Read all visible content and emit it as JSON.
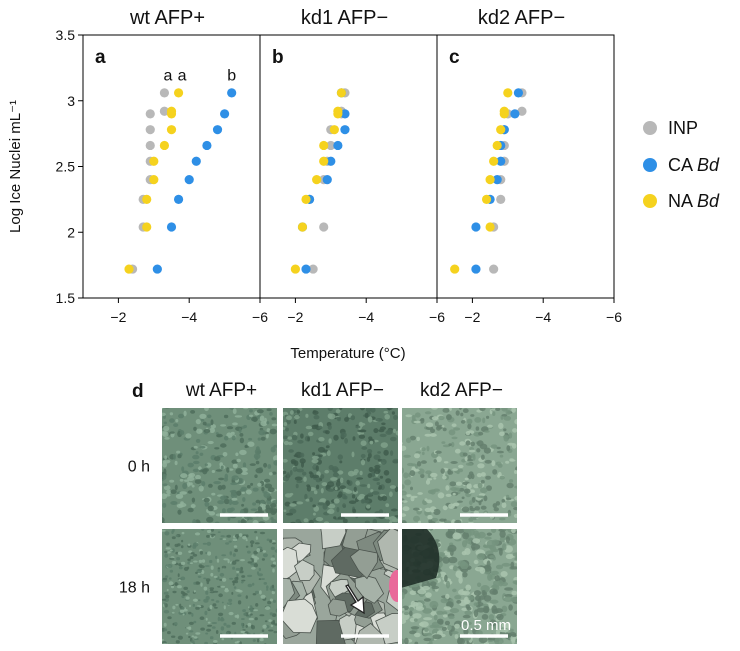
{
  "chart_data": [
    {
      "type": "scatter",
      "panel_letter": "a",
      "title": "wt AFP+",
      "xlabel": "Temperature (°C)",
      "ylabel": "Log Ice Nuclei mL⁻¹",
      "xlim": [
        -1,
        -6
      ],
      "ylim": [
        1.5,
        3.5
      ],
      "xticks": [
        -2,
        -4,
        -6
      ],
      "yticks": [
        1.5,
        2,
        2.5,
        3,
        3.5
      ],
      "significance_labels": [
        {
          "text": "a",
          "x": -3.4,
          "y": 3.2
        },
        {
          "text": "a",
          "x": -3.8,
          "y": 3.2
        },
        {
          "text": "b",
          "x": -5.2,
          "y": 3.2
        }
      ],
      "series": [
        {
          "name": "INP",
          "color": "#b8b8b8",
          "x": [
            -2.4,
            -2.7,
            -2.7,
            -2.9,
            -2.9,
            -2.9,
            -2.9,
            -2.9,
            -3.3,
            -3.3
          ],
          "y": [
            1.72,
            2.04,
            2.25,
            2.4,
            2.54,
            2.66,
            2.78,
            2.9,
            2.92,
            3.06
          ]
        },
        {
          "name": "CA Bd",
          "color": "#2e8fe6",
          "x": [
            -3.1,
            -3.5,
            -3.7,
            -4.0,
            -4.2,
            -4.5,
            -4.8,
            -5.0,
            -5.2
          ],
          "y": [
            1.72,
            2.04,
            2.25,
            2.4,
            2.54,
            2.66,
            2.78,
            2.9,
            3.06
          ]
        },
        {
          "name": "NA Bd",
          "color": "#f5d21e",
          "x": [
            -2.3,
            -2.8,
            -2.8,
            -3.0,
            -3.0,
            -3.3,
            -3.5,
            -3.5,
            -3.5,
            -3.7
          ],
          "y": [
            1.72,
            2.04,
            2.25,
            2.4,
            2.54,
            2.66,
            2.78,
            2.9,
            2.92,
            3.06
          ]
        }
      ]
    },
    {
      "type": "scatter",
      "panel_letter": "b",
      "title": "kd1 AFP−",
      "xlim": [
        -1,
        -6
      ],
      "ylim": [
        1.5,
        3.5
      ],
      "xticks": [
        -2,
        -4,
        -6
      ],
      "series": [
        {
          "name": "INP",
          "color": "#b8b8b8",
          "x": [
            -2.5,
            -2.8,
            -2.4,
            -2.8,
            -2.9,
            -3.0,
            -3.0,
            -3.3,
            -3.3,
            -3.4
          ],
          "y": [
            1.72,
            2.04,
            2.25,
            2.4,
            2.54,
            2.66,
            2.78,
            2.9,
            2.92,
            3.06
          ]
        },
        {
          "name": "CA Bd",
          "color": "#2e8fe6",
          "x": [
            -2.3,
            -2.2,
            -2.4,
            -2.9,
            -3.0,
            -3.2,
            -3.4,
            -3.4,
            -3.3
          ],
          "y": [
            1.72,
            2.04,
            2.25,
            2.4,
            2.54,
            2.66,
            2.78,
            2.9,
            3.06
          ]
        },
        {
          "name": "NA Bd",
          "color": "#f5d21e",
          "x": [
            -2.0,
            -2.2,
            -2.3,
            -2.6,
            -2.8,
            -2.8,
            -3.1,
            -3.2,
            -3.2,
            -3.3
          ],
          "y": [
            1.72,
            2.04,
            2.25,
            2.4,
            2.54,
            2.66,
            2.78,
            2.9,
            2.92,
            3.06
          ]
        }
      ]
    },
    {
      "type": "scatter",
      "panel_letter": "c",
      "title": "kd2 AFP−",
      "xlim": [
        -1,
        -6
      ],
      "ylim": [
        1.5,
        3.5
      ],
      "xticks": [
        -2,
        -4,
        -6
      ],
      "series": [
        {
          "name": "INP",
          "color": "#b8b8b8",
          "x": [
            -2.6,
            -2.6,
            -2.8,
            -2.8,
            -2.9,
            -2.9,
            -2.9,
            -3.0,
            -3.4,
            -3.4
          ],
          "y": [
            1.72,
            2.04,
            2.25,
            2.4,
            2.54,
            2.66,
            2.78,
            2.9,
            2.92,
            3.06
          ]
        },
        {
          "name": "CA Bd",
          "color": "#2e8fe6",
          "x": [
            -2.1,
            -2.1,
            -2.5,
            -2.7,
            -2.8,
            -2.8,
            -2.9,
            -3.2,
            -3.3
          ],
          "y": [
            1.72,
            2.04,
            2.25,
            2.4,
            2.54,
            2.66,
            2.78,
            2.9,
            3.06
          ]
        },
        {
          "name": "NA Bd",
          "color": "#f5d21e",
          "x": [
            -1.5,
            -2.5,
            -2.4,
            -2.5,
            -2.6,
            -2.7,
            -2.8,
            -2.9,
            -2.9,
            -3.0
          ],
          "y": [
            1.72,
            2.04,
            2.25,
            2.4,
            2.54,
            2.66,
            2.78,
            2.9,
            2.92,
            3.06
          ]
        }
      ]
    }
  ],
  "legend": [
    {
      "prefix": "INP",
      "italic": "",
      "color": "#b8b8b8"
    },
    {
      "prefix": "CA ",
      "italic": "Bd",
      "color": "#2e8fe6"
    },
    {
      "prefix": "NA ",
      "italic": "Bd",
      "color": "#f5d21e"
    }
  ],
  "figure_d": {
    "letter": "d",
    "column_titles": [
      "wt AFP+",
      "kd1 AFP−",
      "kd2 AFP−"
    ],
    "row_labels": [
      "0 h",
      "18 h"
    ],
    "scale_bar_label": "0.5 mm"
  }
}
